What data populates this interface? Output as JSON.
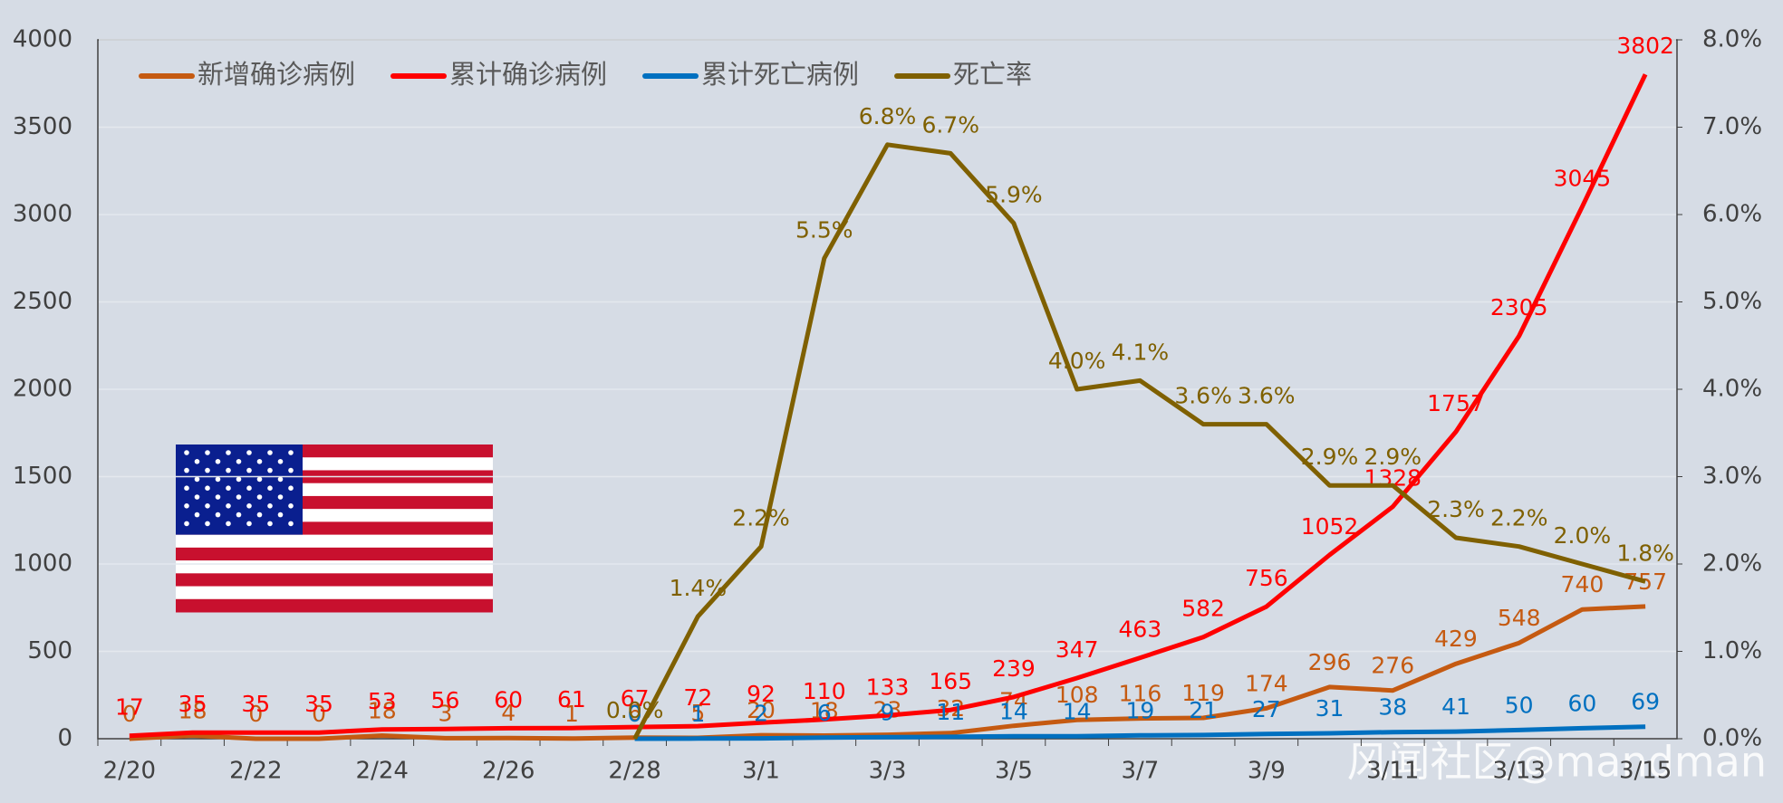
{
  "chart_data": {
    "type": "line",
    "categories": [
      "2/20",
      null,
      "2/22",
      null,
      "2/24",
      null,
      "2/26",
      null,
      "2/28",
      null,
      "3/1",
      null,
      "3/3",
      null,
      "3/5",
      null,
      "3/7",
      null,
      "3/9",
      null,
      "3/11",
      null,
      "3/13",
      null,
      "3/15"
    ],
    "series": [
      {
        "name": "新增确诊病例",
        "color": "#c55a11",
        "values": [
          0,
          18,
          0,
          0,
          18,
          3,
          4,
          1,
          6,
          5,
          20,
          18,
          23,
          32,
          74,
          108,
          116,
          119,
          174,
          296,
          276,
          429,
          548,
          740,
          757
        ]
      },
      {
        "name": "累计确诊病例",
        "color": "#ff0000",
        "values": [
          17,
          35,
          35,
          35,
          53,
          56,
          60,
          61,
          67,
          72,
          92,
          110,
          133,
          165,
          239,
          347,
          463,
          582,
          756,
          1052,
          1328,
          1757,
          2305,
          3045,
          3802
        ]
      },
      {
        "name": "累计死亡病例",
        "color": "#0070c0",
        "values": [
          null,
          null,
          null,
          null,
          null,
          null,
          null,
          null,
          0,
          1,
          2,
          6,
          9,
          11,
          14,
          14,
          19,
          21,
          27,
          31,
          38,
          41,
          50,
          60,
          69
        ]
      },
      {
        "name": "死亡率",
        "color": "#7f6000",
        "axis": "y2",
        "values": [
          null,
          null,
          null,
          null,
          null,
          null,
          null,
          null,
          0.0,
          1.4,
          2.2,
          5.5,
          6.8,
          6.7,
          5.9,
          4.0,
          4.1,
          3.6,
          3.6,
          2.9,
          2.9,
          2.3,
          2.2,
          2.0,
          1.8
        ],
        "value_labels": [
          null,
          null,
          null,
          null,
          null,
          null,
          null,
          null,
          "0.0%",
          "1.4%",
          "2.2%",
          "5.5%",
          "6.8%",
          "6.7%",
          "5.9%",
          "4.0%",
          "4.1%",
          "3.6%",
          "3.6%",
          "2.9%",
          "2.9%",
          "2.3%",
          "2.2%",
          "2.0%",
          "1.8%"
        ]
      }
    ],
    "ylim": [
      0,
      4000
    ],
    "yticks": [
      0,
      500,
      1000,
      1500,
      2000,
      2500,
      3000,
      3500,
      4000
    ],
    "y2lim": [
      0,
      8
    ],
    "y2ticks": [
      {
        "value": 0,
        "label": "0.0%"
      },
      {
        "value": 1,
        "label": "1.0%"
      },
      {
        "value": 2,
        "label": "2.0%"
      },
      {
        "value": 3,
        "label": "3.0%"
      },
      {
        "value": 4,
        "label": "4.0%"
      },
      {
        "value": 5,
        "label": "5.0%"
      },
      {
        "value": 6,
        "label": "6.0%"
      },
      {
        "value": 7,
        "label": "7.0%"
      },
      {
        "value": 8,
        "label": "8.0%"
      }
    ],
    "grid": true,
    "legend": "top-left"
  },
  "watermark": "风闻社区@mandman"
}
